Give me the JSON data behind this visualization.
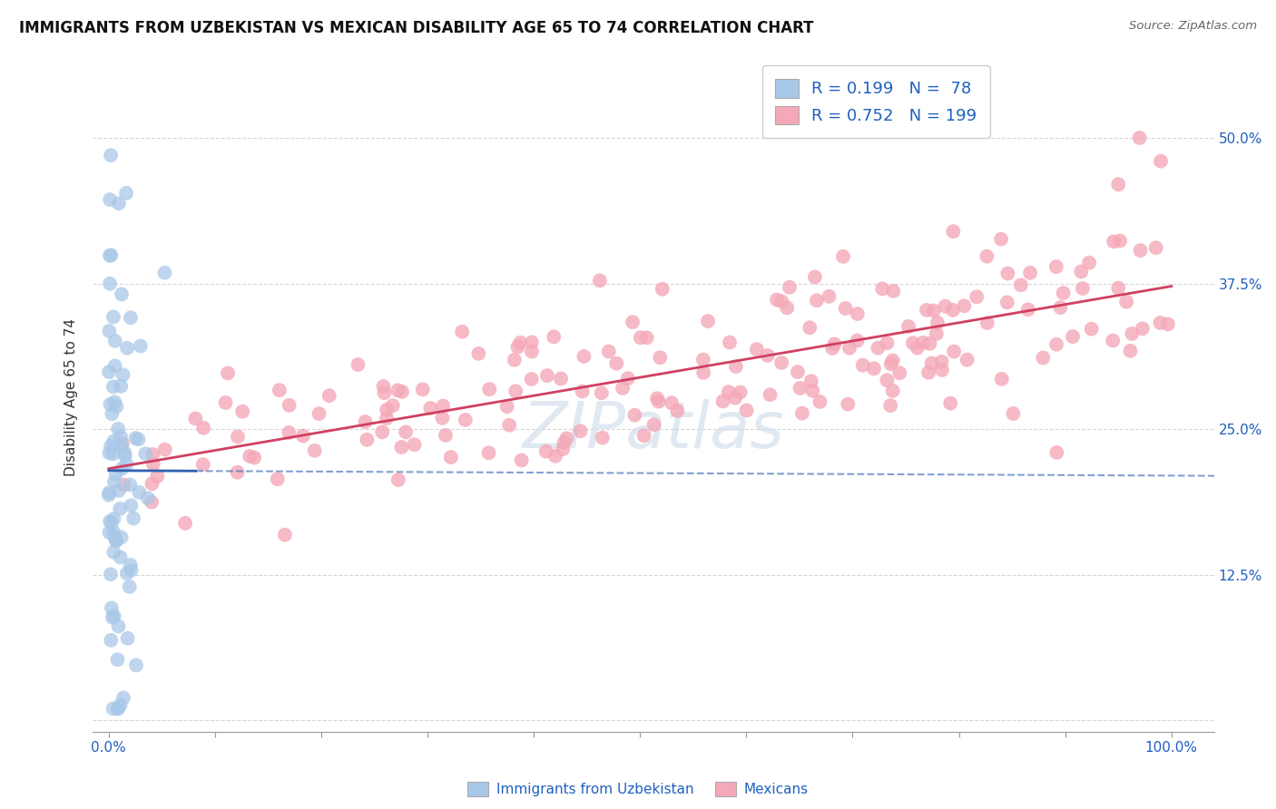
{
  "title": "IMMIGRANTS FROM UZBEKISTAN VS MEXICAN DISABILITY AGE 65 TO 74 CORRELATION CHART",
  "source_text": "Source: ZipAtlas.com",
  "ylabel": "Disability Age 65 to 74",
  "blue_R": 0.199,
  "blue_N": 78,
  "pink_R": 0.752,
  "pink_N": 199,
  "legend_label_blue": "Immigrants from Uzbekistan",
  "legend_label_pink": "Mexicans",
  "blue_color": "#a8c8e8",
  "pink_color": "#f4a8b8",
  "blue_line_color": "#3060b0",
  "pink_line_color": "#d04060",
  "watermark": "ZIPatlas",
  "background_color": "#ffffff",
  "label_color": "#2060c0",
  "grid_color": "#cccccc",
  "title_color": "#111111"
}
